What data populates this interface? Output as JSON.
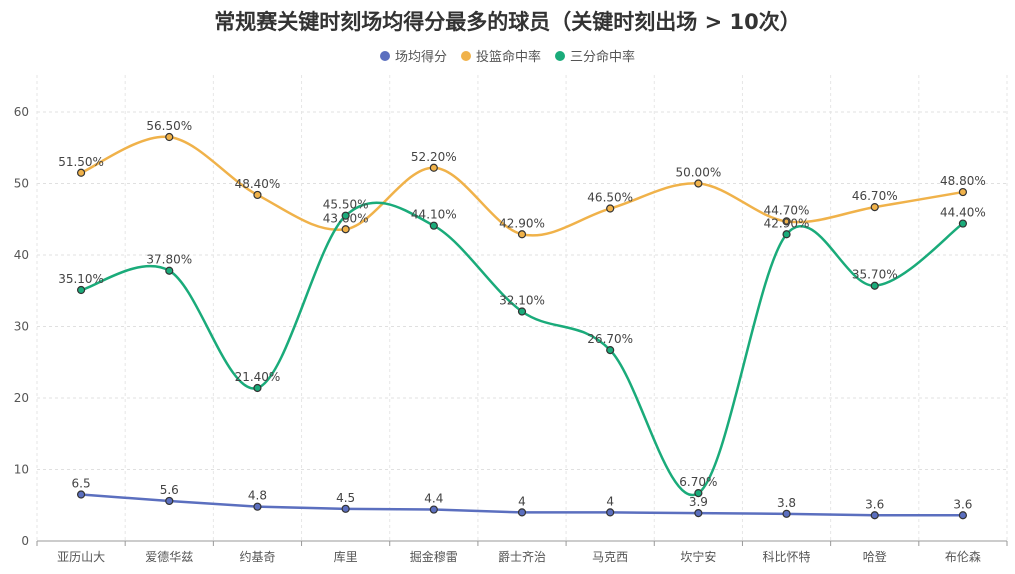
{
  "chart_data": {
    "type": "line",
    "title": "常规赛关键时刻场均得分最多的球员（关键时刻出场 > 10次）",
    "categories": [
      "亚历山大",
      "爱德华兹",
      "约基奇",
      "库里",
      "掘金穆雷",
      "爵士齐治",
      "马克西",
      "坎宁安",
      "科比怀特",
      "哈登",
      "布伦森"
    ],
    "ylim": [
      0,
      60
    ],
    "yticks": [
      0,
      10,
      20,
      30,
      40,
      50,
      60
    ],
    "grid": true,
    "legend_position": "top-center",
    "series": [
      {
        "name": "场均得分",
        "color": "#5b6fbf",
        "smooth": false,
        "values": [
          6.5,
          5.6,
          4.8,
          4.5,
          4.4,
          4,
          4,
          3.9,
          3.8,
          3.6,
          3.6
        ],
        "labels": [
          "6.5",
          "5.6",
          "4.8",
          "4.5",
          "4.4",
          "4",
          "4",
          "3.9",
          "3.8",
          "3.6",
          "3.6"
        ]
      },
      {
        "name": "投篮命中率",
        "color": "#f0b24a",
        "smooth": true,
        "values": [
          51.5,
          56.5,
          48.4,
          43.6,
          52.2,
          42.9,
          46.5,
          50.0,
          44.7,
          46.7,
          48.8
        ],
        "labels": [
          "51.50%",
          "56.50%",
          "48.40%",
          "43.60%",
          "52.20%",
          "42.90%",
          "46.50%",
          "50.00%",
          "44.70%",
          "46.70%",
          "48.80%"
        ]
      },
      {
        "name": "三分命中率",
        "color": "#1aab7a",
        "smooth": true,
        "values": [
          35.1,
          37.8,
          21.4,
          45.5,
          44.1,
          32.1,
          26.7,
          6.7,
          42.9,
          35.7,
          44.4
        ],
        "labels": [
          "35.10%",
          "37.80%",
          "21.40%",
          "45.50%",
          "44.10%",
          "32.10%",
          "26.70%",
          "6.70%",
          "42.90%",
          "35.70%",
          "44.40%"
        ]
      }
    ]
  }
}
